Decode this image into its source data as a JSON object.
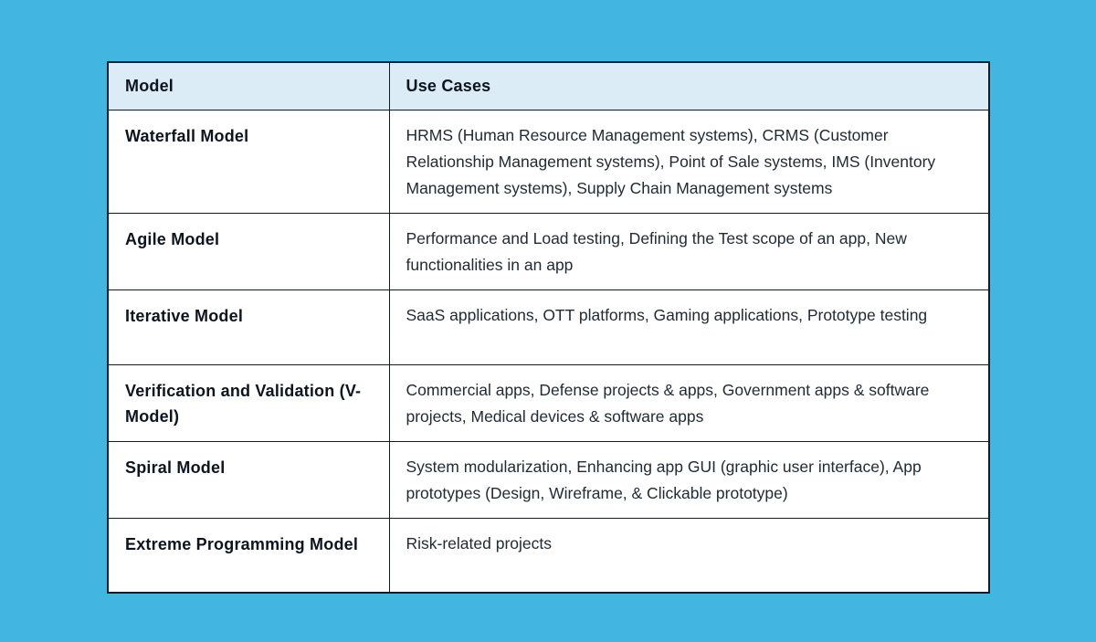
{
  "colors": {
    "page_background": "#42b6e1",
    "header_background": "#dbecf7",
    "border": "#0e1c29",
    "cell_background": "#ffffff",
    "heading_text": "#0d1420",
    "body_text": "#212b36"
  },
  "table": {
    "headers": [
      {
        "label": "Model"
      },
      {
        "label": "Use Cases"
      }
    ],
    "rows": [
      {
        "model": "Waterfall Model",
        "use_cases": "HRMS (Human Resource Management systems), CRMS (Customer Relationship Management systems), Point of Sale systems, IMS (Inventory Management systems), Supply Chain Management systems"
      },
      {
        "model": "Agile Model",
        "use_cases": "Performance and Load testing, Defining the Test scope of an app, New functionalities in an app"
      },
      {
        "model": "Iterative Model",
        "use_cases": "SaaS applications, OTT platforms, Gaming applications, Prototype testing"
      },
      {
        "model": "Verification and Validation (V-Model)",
        "use_cases": "Commercial apps, Defense projects & apps, Government apps & software projects, Medical devices & software apps"
      },
      {
        "model": "Spiral Model",
        "use_cases": "System modularization, Enhancing app GUI (graphic user interface), App prototypes (Design, Wireframe, & Clickable prototype)"
      },
      {
        "model": "Extreme Programming Model",
        "use_cases": "Risk-related projects"
      }
    ]
  }
}
